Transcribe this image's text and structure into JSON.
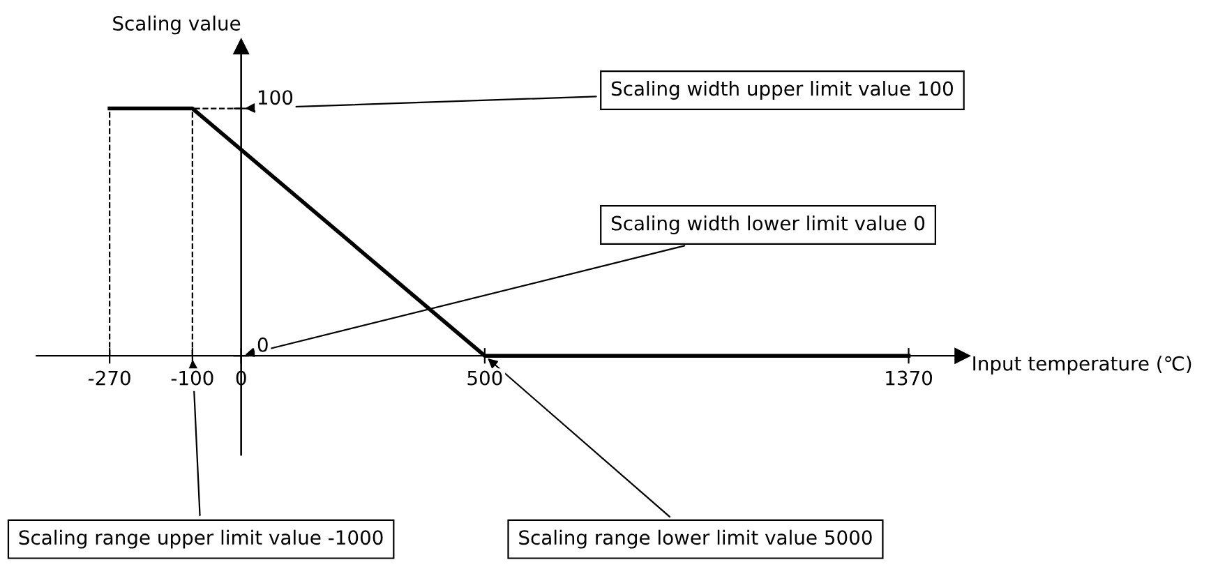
{
  "chart_data": {
    "type": "line",
    "xlabel": "Input temperature (℃)",
    "ylabel": "Scaling value",
    "x": [
      -270,
      -100,
      500,
      1370
    ],
    "series": [
      {
        "color": "#000000",
        "values": [
          100,
          100,
          0,
          0
        ]
      }
    ],
    "xlim": [
      -420,
      1480
    ],
    "ylim": [
      -40,
      125
    ],
    "xticks": [
      -270,
      -100,
      0,
      500,
      1370
    ],
    "yticks": [
      0,
      100
    ],
    "grid": false,
    "marker": "none",
    "line_style": "solid",
    "ref_lines": [
      {
        "axis": "x",
        "value": -270,
        "line_style": "dashed",
        "color": "#000000"
      },
      {
        "axis": "x",
        "value": -100,
        "line_style": "dashed",
        "color": "#000000"
      },
      {
        "axis": "y",
        "value": 100,
        "line_style": "dashed",
        "color": "#000000"
      }
    ],
    "annotations": [
      {
        "text": "Scaling width upper limit value 100",
        "x": 0,
        "y": 100
      },
      {
        "text": "Scaling width lower limit value 0",
        "x": 0,
        "y": 0
      },
      {
        "text": "Scaling range upper limit value -1000",
        "x": -100,
        "y": 0
      },
      {
        "text": "Scaling range lower limit value 5000",
        "x": 500,
        "y": 0
      }
    ]
  }
}
